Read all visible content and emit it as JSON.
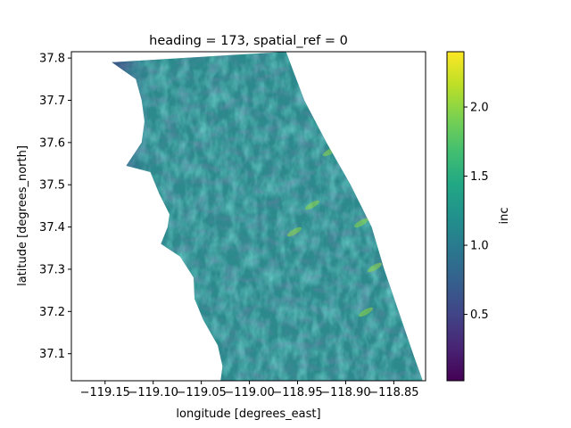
{
  "chart_data": {
    "type": "heatmap",
    "title": "heading = 173, spatial_ref = 0",
    "xlabel": "longitude [degrees_east]",
    "ylabel": "latitude [degrees_north]",
    "xlim": [
      -119.185,
      -118.817
    ],
    "ylim": [
      37.036,
      37.815
    ],
    "xticks": [
      -119.15,
      -119.1,
      -119.05,
      -119.0,
      -118.95,
      -118.9,
      -118.85
    ],
    "xtick_labels": [
      "−119.15",
      "−119.10",
      "−119.05",
      "−119.00",
      "−118.95",
      "−118.90",
      "−118.85"
    ],
    "yticks": [
      37.1,
      37.2,
      37.3,
      37.4,
      37.5,
      37.6,
      37.7,
      37.8
    ],
    "ytick_labels": [
      "37.1",
      "37.2",
      "37.3",
      "37.4",
      "37.5",
      "37.6",
      "37.7",
      "37.8"
    ],
    "colormap": "viridis",
    "colorbar": {
      "label": "inc",
      "range": [
        0.02,
        2.4
      ],
      "ticks": [
        0.5,
        1.0,
        1.5,
        2.0
      ],
      "tick_labels": [
        "0.5",
        "1.0",
        "1.5",
        "2.0"
      ]
    },
    "grid": false,
    "swath": {
      "description_values_in_data_units": "valid-data footprint (left edge and right edge longitude per latitude)",
      "left_edge": [
        {
          "lat": 37.79,
          "lon": -119.143
        },
        {
          "lat": 37.75,
          "lon": -119.118
        },
        {
          "lat": 37.7,
          "lon": -119.112
        },
        {
          "lat": 37.65,
          "lon": -119.109
        },
        {
          "lat": 37.6,
          "lon": -119.112
        },
        {
          "lat": 37.545,
          "lon": -119.128
        },
        {
          "lat": 37.53,
          "lon": -119.103
        },
        {
          "lat": 37.48,
          "lon": -119.094
        },
        {
          "lat": 37.43,
          "lon": -119.083
        },
        {
          "lat": 37.4,
          "lon": -119.085
        },
        {
          "lat": 37.36,
          "lon": -119.092
        },
        {
          "lat": 37.33,
          "lon": -119.072
        },
        {
          "lat": 37.28,
          "lon": -119.058
        },
        {
          "lat": 37.23,
          "lon": -119.057
        },
        {
          "lat": 37.18,
          "lon": -119.048
        },
        {
          "lat": 37.12,
          "lon": -119.033
        },
        {
          "lat": 37.07,
          "lon": -119.028
        },
        {
          "lat": 37.036,
          "lon": -119.03
        }
      ],
      "right_edge": [
        {
          "lat": 37.815,
          "lon": -118.962
        },
        {
          "lat": 37.7,
          "lon": -118.943
        },
        {
          "lat": 37.6,
          "lon": -118.92
        },
        {
          "lat": 37.5,
          "lon": -118.895
        },
        {
          "lat": 37.4,
          "lon": -118.873
        },
        {
          "lat": 37.3,
          "lon": -118.86
        },
        {
          "lat": 37.2,
          "lon": -118.845
        },
        {
          "lat": 37.1,
          "lon": -118.83
        },
        {
          "lat": 37.036,
          "lon": -118.82
        }
      ]
    }
  }
}
